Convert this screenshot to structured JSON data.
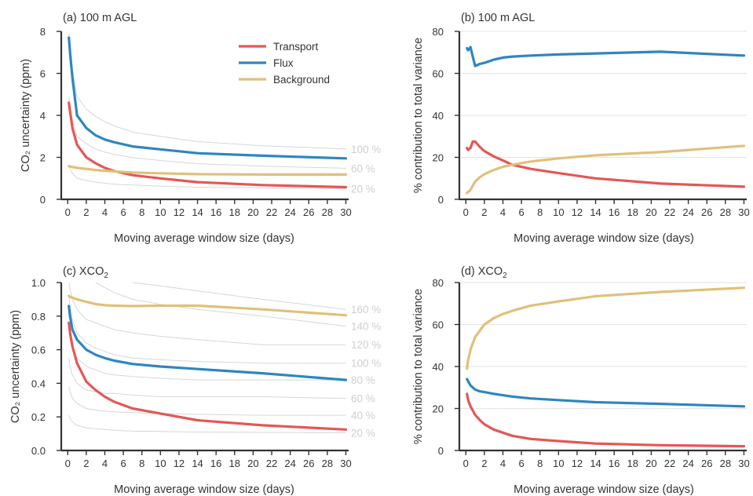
{
  "colors": {
    "Transport": "#e45756",
    "Flux": "#2e86c1",
    "Background": "#e0c07a",
    "contour": "#d6d6d6",
    "contour_label": "#cfcfcf"
  },
  "chart_data": [
    {
      "id": "a",
      "type": "line",
      "title": "(a) 100 m AGL",
      "xlabel": "Moving average window size (days)",
      "ylabel": "CO₂ uncertainty (ppm)",
      "xlim": [
        -0.7,
        30.3
      ],
      "ylim": [
        0,
        8
      ],
      "xticks": [
        0,
        2,
        4,
        6,
        8,
        10,
        12,
        14,
        16,
        18,
        20,
        22,
        24,
        26,
        28,
        30
      ],
      "yticks": [
        0,
        2,
        4,
        6,
        8
      ],
      "ytick_labels": [
        "0",
        "2",
        "4",
        "6",
        "8"
      ],
      "grid": false,
      "legend": {
        "placement": "top-center",
        "entries": [
          "Transport",
          "Flux",
          "Background"
        ]
      },
      "x": [
        0.125,
        0.25,
        0.5,
        1,
        2,
        3,
        4,
        5,
        7,
        10,
        14,
        21,
        30
      ],
      "series": [
        {
          "name": "Transport",
          "values": [
            4.6,
            4.2,
            3.4,
            2.6,
            2.0,
            1.72,
            1.5,
            1.35,
            1.15,
            1.0,
            0.82,
            0.68,
            0.58
          ]
        },
        {
          "name": "Flux",
          "values": [
            7.7,
            7.0,
            5.8,
            4.0,
            3.4,
            3.05,
            2.85,
            2.72,
            2.52,
            2.38,
            2.2,
            2.08,
            1.95
          ]
        },
        {
          "name": "Background",
          "values": [
            1.58,
            1.56,
            1.54,
            1.5,
            1.45,
            1.4,
            1.36,
            1.33,
            1.28,
            1.24,
            1.2,
            1.18,
            1.18
          ]
        }
      ],
      "contours": [
        {
          "label": "100 %",
          "values": [
            7.9,
            7.2,
            6.2,
            4.9,
            4.3,
            3.95,
            3.7,
            3.5,
            3.2,
            3.0,
            2.75,
            2.55,
            2.4
          ]
        },
        {
          "label": "60 %",
          "values": [
            4.9,
            4.4,
            3.8,
            3.0,
            2.65,
            2.4,
            2.25,
            2.15,
            1.98,
            1.85,
            1.7,
            1.58,
            1.48
          ]
        },
        {
          "label": "20 %",
          "values": [
            1.65,
            1.45,
            1.25,
            1.0,
            0.9,
            0.82,
            0.77,
            0.72,
            0.68,
            0.63,
            0.58,
            0.55,
            0.5
          ]
        }
      ]
    },
    {
      "id": "b",
      "type": "line",
      "title": "(b) 100 m AGL",
      "xlabel": "Moving average window size (days)",
      "ylabel": "% contribution to total variance",
      "xlim": [
        -0.7,
        30.3
      ],
      "ylim": [
        0,
        80
      ],
      "xticks": [
        0,
        2,
        4,
        6,
        8,
        10,
        12,
        14,
        16,
        18,
        20,
        22,
        24,
        26,
        28,
        30
      ],
      "yticks": [
        0,
        20,
        40,
        60,
        80
      ],
      "ytick_labels": [
        "0",
        "20",
        "40",
        "60",
        "80"
      ],
      "grid": true,
      "x": [
        0.125,
        0.25,
        0.5,
        0.75,
        1,
        1.5,
        2,
        3,
        4,
        5,
        7,
        10,
        14,
        21,
        30
      ],
      "series": [
        {
          "name": "Transport",
          "values": [
            24.5,
            23.5,
            24.5,
            27.5,
            27.5,
            25,
            23,
            20.5,
            18.5,
            16.5,
            14.5,
            12.5,
            10,
            7.5,
            6
          ]
        },
        {
          "name": "Flux",
          "values": [
            72,
            71,
            72.5,
            68,
            63.5,
            64.5,
            65,
            66.5,
            67.5,
            68,
            68.5,
            69,
            69.5,
            70.3,
            68.5
          ]
        },
        {
          "name": "Background",
          "values": [
            3,
            3.5,
            4.5,
            6.5,
            8.5,
            10.5,
            12,
            14,
            15.5,
            16.5,
            18,
            19.5,
            21,
            22.5,
            25.5
          ]
        }
      ]
    },
    {
      "id": "c",
      "type": "line",
      "title": "(c) XCO₂",
      "xlabel": "Moving average window size (days)",
      "ylabel": "CO₂ uncertainty (ppm)",
      "xlim": [
        -0.7,
        30.3
      ],
      "ylim": [
        0,
        1.0
      ],
      "xticks": [
        0,
        2,
        4,
        6,
        8,
        10,
        12,
        14,
        16,
        18,
        20,
        22,
        24,
        26,
        28,
        30
      ],
      "yticks": [
        0,
        0.2,
        0.4,
        0.6,
        0.8,
        1.0
      ],
      "ytick_labels": [
        "0.0",
        "0.2",
        "0.4",
        "0.6",
        "0.8",
        "1.0"
      ],
      "grid": false,
      "x": [
        0.125,
        0.25,
        0.5,
        1,
        2,
        3,
        4,
        5,
        7,
        10,
        14,
        21,
        30
      ],
      "series": [
        {
          "name": "Transport",
          "values": [
            0.76,
            0.7,
            0.62,
            0.52,
            0.41,
            0.36,
            0.32,
            0.29,
            0.25,
            0.22,
            0.18,
            0.15,
            0.125
          ]
        },
        {
          "name": "Flux",
          "values": [
            0.86,
            0.8,
            0.72,
            0.66,
            0.6,
            0.57,
            0.55,
            0.535,
            0.515,
            0.5,
            0.485,
            0.46,
            0.42
          ]
        },
        {
          "name": "Background",
          "values": [
            0.92,
            0.915,
            0.91,
            0.9,
            0.885,
            0.872,
            0.865,
            0.862,
            0.86,
            0.862,
            0.862,
            0.84,
            0.805
          ]
        }
      ],
      "contours": [
        {
          "label": "160 %",
          "values": [
            null,
            null,
            null,
            null,
            null,
            null,
            null,
            null,
            1.0,
            0.98,
            0.95,
            0.9,
            0.84
          ]
        },
        {
          "label": "140 %",
          "values": [
            null,
            null,
            null,
            null,
            null,
            1.0,
            0.97,
            0.94,
            0.9,
            0.87,
            0.84,
            0.8,
            0.74
          ]
        },
        {
          "label": "120 %",
          "values": [
            1.0,
            0.96,
            0.9,
            0.84,
            0.78,
            0.76,
            0.74,
            0.72,
            0.7,
            0.68,
            0.66,
            0.63,
            0.63
          ]
        },
        {
          "label": "100 %",
          "values": [
            0.92,
            0.86,
            0.78,
            0.7,
            0.64,
            0.61,
            0.59,
            0.57,
            0.55,
            0.54,
            0.53,
            0.52,
            0.52
          ]
        },
        {
          "label": "80 %",
          "values": [
            0.72,
            0.67,
            0.61,
            0.55,
            0.5,
            0.48,
            0.46,
            0.45,
            0.44,
            0.43,
            0.42,
            0.42,
            0.42
          ]
        },
        {
          "label": "60 %",
          "values": [
            0.55,
            0.5,
            0.45,
            0.4,
            0.36,
            0.35,
            0.34,
            0.34,
            0.33,
            0.32,
            0.32,
            0.32,
            0.31
          ]
        },
        {
          "label": "40 %",
          "values": [
            0.38,
            0.35,
            0.31,
            0.28,
            0.25,
            0.24,
            0.235,
            0.23,
            0.225,
            0.22,
            0.215,
            0.21,
            0.21
          ]
        },
        {
          "label": "20 %",
          "values": [
            0.21,
            0.19,
            0.17,
            0.15,
            0.135,
            0.13,
            0.125,
            0.12,
            0.115,
            0.113,
            0.11,
            0.108,
            0.105
          ]
        }
      ]
    },
    {
      "id": "d",
      "type": "line",
      "title": "(d) XCO₂",
      "xlabel": "Moving average window size (days)",
      "ylabel": "% contribution to total variance",
      "xlim": [
        -0.7,
        30.3
      ],
      "ylim": [
        0,
        80
      ],
      "xticks": [
        0,
        2,
        4,
        6,
        8,
        10,
        12,
        14,
        16,
        18,
        20,
        22,
        24,
        26,
        28,
        30
      ],
      "yticks": [
        0,
        20,
        40,
        60,
        80
      ],
      "ytick_labels": [
        "0",
        "20",
        "40",
        "60",
        "80"
      ],
      "grid": true,
      "x": [
        0.125,
        0.25,
        0.5,
        1,
        1.5,
        2,
        3,
        4,
        5,
        7,
        10,
        14,
        21,
        30
      ],
      "series": [
        {
          "name": "Transport",
          "values": [
            27,
            24,
            21,
            17,
            14.5,
            12.5,
            10,
            8.5,
            7,
            5.5,
            4.5,
            3.3,
            2.5,
            2
          ]
        },
        {
          "name": "Flux",
          "values": [
            34,
            33,
            31,
            29,
            28.2,
            27.8,
            27,
            26.3,
            25.7,
            24.8,
            24,
            23,
            22.2,
            21
          ]
        },
        {
          "name": "Background",
          "values": [
            39,
            43,
            48,
            54,
            57,
            60,
            63,
            65,
            66.5,
            69,
            71,
            73.5,
            75.5,
            77.5
          ]
        }
      ]
    }
  ]
}
